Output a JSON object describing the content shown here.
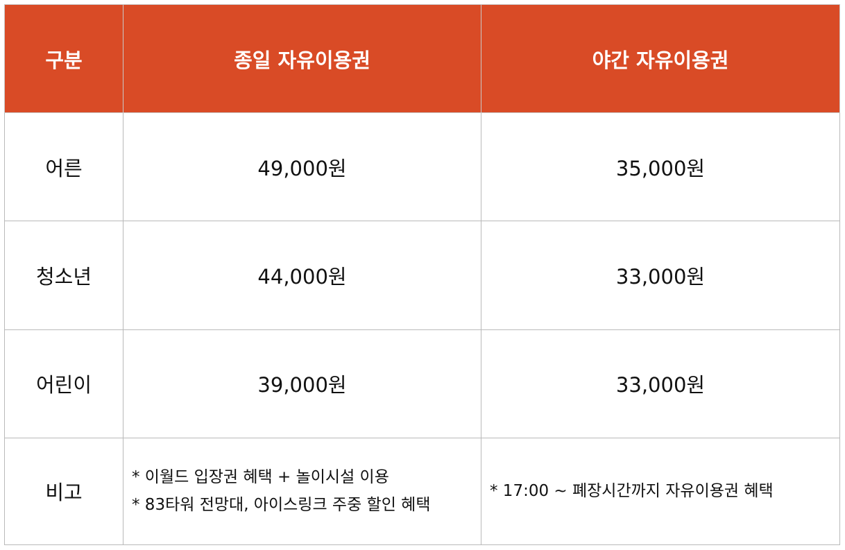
{
  "table": {
    "headers": [
      "구분",
      "종일 자유이용권",
      "야간 자유이용권"
    ],
    "rows": [
      {
        "category": "어른",
        "day_pass": "49,000원",
        "night_pass": "35,000원"
      },
      {
        "category": "청소년",
        "day_pass": "44,000원",
        "night_pass": "33,000원"
      },
      {
        "category": "어린이",
        "day_pass": "39,000원",
        "night_pass": "33,000원"
      }
    ],
    "notes": {
      "label": "비고",
      "day_pass": [
        "* 이월드 입장권 혜택 + 놀이시설 이용",
        "* 83타워 전망대, 아이스링크 주중 할인 혜택"
      ],
      "night_pass": [
        "* 17:00 ~ 폐장시간까지 자유이용권 혜택"
      ]
    }
  },
  "colors": {
    "header_background": "#d94b26",
    "header_text": "#ffffff",
    "border": "#b9b9b9",
    "body_text": "#111111"
  }
}
